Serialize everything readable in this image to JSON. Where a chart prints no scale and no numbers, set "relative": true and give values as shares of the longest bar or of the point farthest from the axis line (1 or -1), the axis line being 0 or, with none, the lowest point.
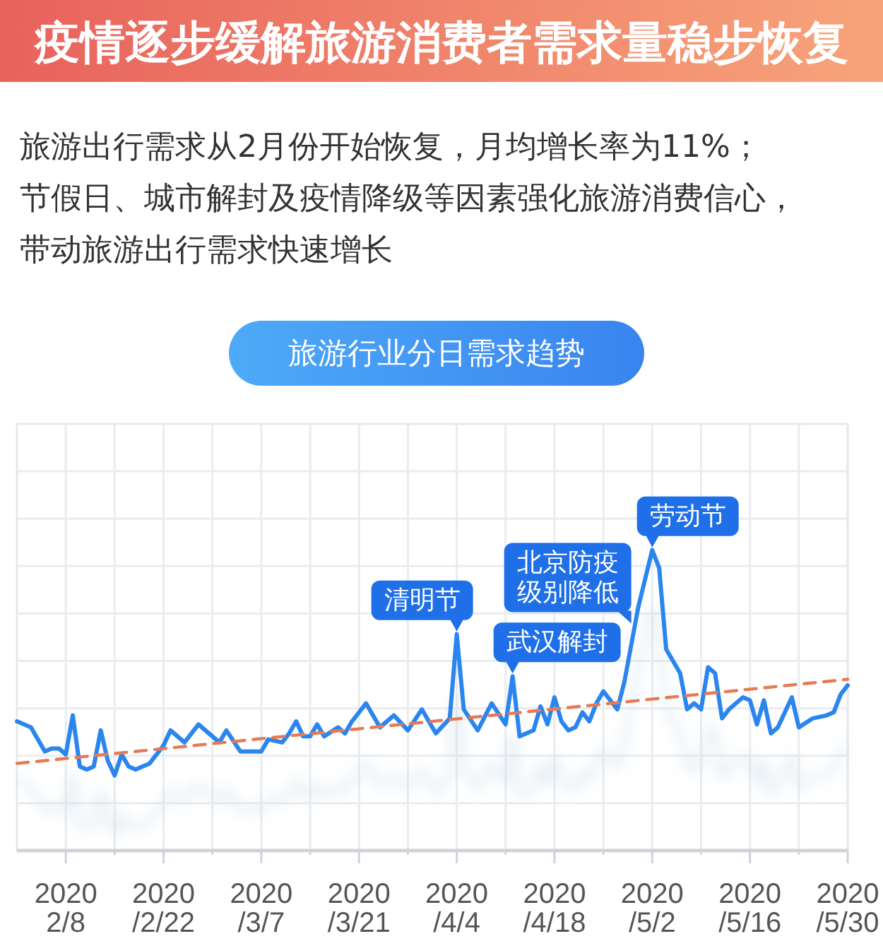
{
  "chart_data": {
    "type": "line",
    "title": "疫情逐步缓解旅游消费者需求量稳步恢复",
    "subtitle": "旅游出行需求从2月份开始恢复，月均增长率为11%；节假日、城市解封及疫情降级等因素强化旅游消费信心，带动旅游出行需求快速增长",
    "relative": true,
    "grid": true,
    "x": [
      "2020-02-01",
      "2020-02-03",
      "2020-02-05",
      "2020-02-06",
      "2020-02-07",
      "2020-02-08",
      "2020-02-09",
      "2020-02-10",
      "2020-02-11",
      "2020-02-12",
      "2020-02-13",
      "2020-02-14",
      "2020-02-15",
      "2020-02-16",
      "2020-02-17",
      "2020-02-18",
      "2020-02-20",
      "2020-02-22",
      "2020-02-23",
      "2020-02-25",
      "2020-02-27",
      "2020-03-01",
      "2020-03-02",
      "2020-03-04",
      "2020-03-07",
      "2020-03-08",
      "2020-03-10",
      "2020-03-11",
      "2020-03-12",
      "2020-03-13",
      "2020-03-14",
      "2020-03-15",
      "2020-03-16",
      "2020-03-18",
      "2020-03-19",
      "2020-03-20",
      "2020-03-22",
      "2020-03-24",
      "2020-03-26",
      "2020-03-28",
      "2020-03-30",
      "2020-04-01",
      "2020-04-03",
      "2020-04-04",
      "2020-04-05",
      "2020-04-07",
      "2020-04-09",
      "2020-04-11",
      "2020-04-12",
      "2020-04-13",
      "2020-04-15",
      "2020-04-16",
      "2020-04-17",
      "2020-04-18",
      "2020-04-19",
      "2020-04-20",
      "2020-04-21",
      "2020-04-22",
      "2020-04-23",
      "2020-04-24",
      "2020-04-25",
      "2020-04-27",
      "2020-04-28",
      "2020-04-30",
      "2020-05-02",
      "2020-05-03",
      "2020-05-04",
      "2020-05-06",
      "2020-05-07",
      "2020-05-08",
      "2020-05-09",
      "2020-05-10",
      "2020-05-11",
      "2020-05-12",
      "2020-05-13",
      "2020-05-15",
      "2020-05-16",
      "2020-05-17",
      "2020-05-18",
      "2020-05-19",
      "2020-05-20",
      "2020-05-22",
      "2020-05-23",
      "2020-05-25",
      "2020-05-27",
      "2020-05-28",
      "2020-05-29",
      "2020-05-30"
    ],
    "xlim": [
      "2020-02-01",
      "2020-05-30"
    ],
    "xticks": [
      {
        "value": "2020-02-08",
        "label": "2020\n2/8"
      },
      {
        "value": "2020-02-15",
        "label": null
      },
      {
        "value": "2020-02-22",
        "label": "2020\n/2/22"
      },
      {
        "value": "2020-02-29",
        "label": null
      },
      {
        "value": "2020-03-07",
        "label": "2020\n/3/7"
      },
      {
        "value": "2020-03-14",
        "label": null
      },
      {
        "value": "2020-03-21",
        "label": "2020\n/3/21"
      },
      {
        "value": "2020-03-28",
        "label": null
      },
      {
        "value": "2020-04-04",
        "label": "2020\n/4/4"
      },
      {
        "value": "2020-04-11",
        "label": null
      },
      {
        "value": "2020-04-18",
        "label": "2020\n/4/18"
      },
      {
        "value": "2020-04-25",
        "label": null
      },
      {
        "value": "2020-05-02",
        "label": "2020\n/5/2"
      },
      {
        "value": "2020-05-09",
        "label": null
      },
      {
        "value": "2020-05-16",
        "label": "2020\n/5/16"
      },
      {
        "value": "2020-05-23",
        "label": null
      },
      {
        "value": "2020-05-30",
        "label": "2020\n/5/30"
      }
    ],
    "series": [
      {
        "color": "#2b86ee",
        "values": [
          0.43,
          0.41,
          0.33,
          0.34,
          0.34,
          0.32,
          0.45,
          0.28,
          0.27,
          0.28,
          0.4,
          0.3,
          0.25,
          0.32,
          0.28,
          0.27,
          0.29,
          0.35,
          0.4,
          0.36,
          0.42,
          0.36,
          0.4,
          0.33,
          0.33,
          0.37,
          0.36,
          0.39,
          0.43,
          0.38,
          0.38,
          0.42,
          0.38,
          0.41,
          0.39,
          0.43,
          0.49,
          0.41,
          0.45,
          0.4,
          0.47,
          0.39,
          0.44,
          0.72,
          0.47,
          0.4,
          0.49,
          0.42,
          0.58,
          0.38,
          0.4,
          0.48,
          0.42,
          0.51,
          0.43,
          0.4,
          0.41,
          0.46,
          0.43,
          0.49,
          0.53,
          0.47,
          0.56,
          0.81,
          1,
          0.94,
          0.67,
          0.59,
          0.47,
          0.49,
          0.47,
          0.61,
          0.59,
          0.44,
          0.47,
          0.51,
          0.5,
          0.42,
          0.5,
          0.39,
          0.41,
          0.51,
          0.41,
          0.44,
          0.45,
          0.46,
          0.52,
          0.55
        ]
      },
      {
        "type": "line",
        "x": [
          "2020-02-01",
          "2020-05-30"
        ],
        "values": [
          0.29,
          0.57
        ],
        "color": "#e77a55",
        "line_style": "dashed"
      }
    ],
    "annotations": [
      "旅游行业分日需求趋势",
      {
        "text": "清明节",
        "x": "2020-04-04",
        "y": 0.72
      },
      {
        "text": "武汉解封",
        "x": "2020-04-12",
        "y": 0.58
      },
      {
        "text": "北京防疫级别降低",
        "x": "2020-04-29",
        "y": 0.69
      },
      {
        "text": "劳动节",
        "x": "2020-05-02",
        "y": 1
      }
    ]
  }
}
